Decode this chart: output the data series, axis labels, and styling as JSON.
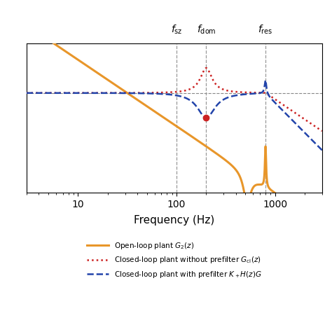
{
  "f_sz": 100,
  "f_dom": 200,
  "f_res": 800,
  "freq_min": 3,
  "freq_max": 3000,
  "ylim_min": -60,
  "ylim_max": 30,
  "ref_level": 0,
  "open_loop_color": "#E8962A",
  "closed_loop_nopf_color": "#CC2222",
  "closed_loop_pf_color": "#2244AA",
  "vline_color": "#999999",
  "bg_color": "#FFFFFF",
  "xlabel": "Frequency (Hz)",
  "label_open": "Open-loop plant $G_2(z)$",
  "label_cl_nopf": "Closed-loop plant without prefilter $G_{\\mathrm{cl}}(z)$",
  "label_cl_pf": "Closed-loop plant with prefilter $K_+H(z)G$"
}
